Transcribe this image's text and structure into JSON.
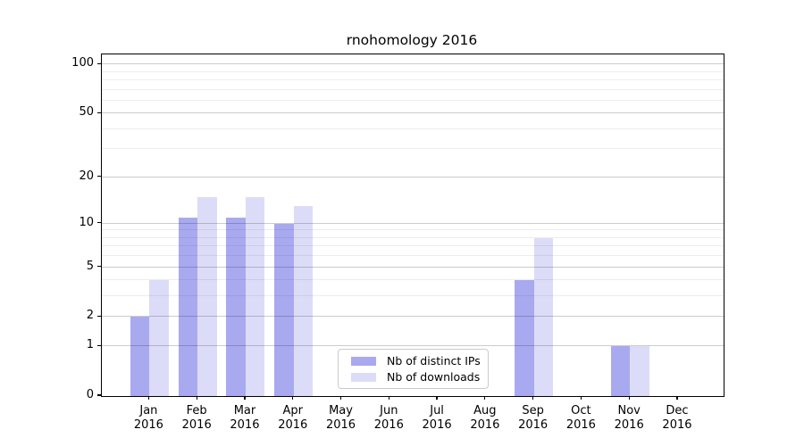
{
  "chart_data": {
    "type": "bar",
    "title": "rnohomology 2016",
    "xlabel": "",
    "ylabel": "",
    "year": "2016",
    "categories": [
      "Jan",
      "Feb",
      "Mar",
      "Apr",
      "May",
      "Jun",
      "Jul",
      "Aug",
      "Sep",
      "Oct",
      "Nov",
      "Dec"
    ],
    "series": [
      {
        "name": "Nb of distinct IPs",
        "color": "#a9a9f0",
        "values": [
          2,
          11,
          11,
          10,
          0,
          0,
          0,
          0,
          4,
          0,
          1,
          0
        ]
      },
      {
        "name": "Nb of downloads",
        "color": "#dcdcf8",
        "values": [
          4,
          15,
          15,
          13,
          0,
          0,
          0,
          0,
          8,
          0,
          1,
          0
        ]
      }
    ],
    "yscale": "log1p",
    "ylim": [
      0,
      115
    ],
    "yticks": [
      0,
      1,
      2,
      5,
      10,
      20,
      50,
      100
    ],
    "yticks_minor": [
      3,
      4,
      6,
      7,
      8,
      9,
      30,
      40,
      60,
      70,
      80,
      90
    ],
    "grid": true,
    "legend_position": "lower center"
  },
  "colors": {
    "grid_major": "rgba(0,0,0,0.20)",
    "grid_minor": "rgba(0,0,0,0.07)",
    "axis": "#000000",
    "legend_border": "#cbcbcb"
  }
}
